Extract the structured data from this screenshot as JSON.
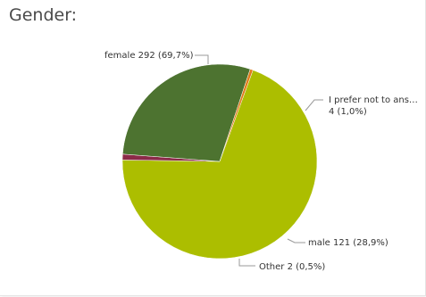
{
  "chart": {
    "title": "Gender:"
  },
  "chart_data": {
    "type": "pie",
    "title": "Gender:",
    "slices": [
      {
        "label": "female",
        "value": 292,
        "percent": "69,7%",
        "color": "#acbe00"
      },
      {
        "label": "I prefer not to ans…",
        "value": 4,
        "percent": "1,0%",
        "color": "#8c2b48"
      },
      {
        "label": "male",
        "value": 121,
        "percent": "28,9%",
        "color": "#4d7330"
      },
      {
        "label": "Other",
        "value": 2,
        "percent": "0,5%",
        "color": "#e07b1a"
      }
    ],
    "labels": {
      "female": "female 292 (69,7%)",
      "prefer_line1": "I prefer not to ans…",
      "prefer_line2": "4 (1,0%)",
      "male": "male 121 (28,9%)",
      "other": "Other 2 (0,5%)"
    },
    "legend": "none"
  }
}
